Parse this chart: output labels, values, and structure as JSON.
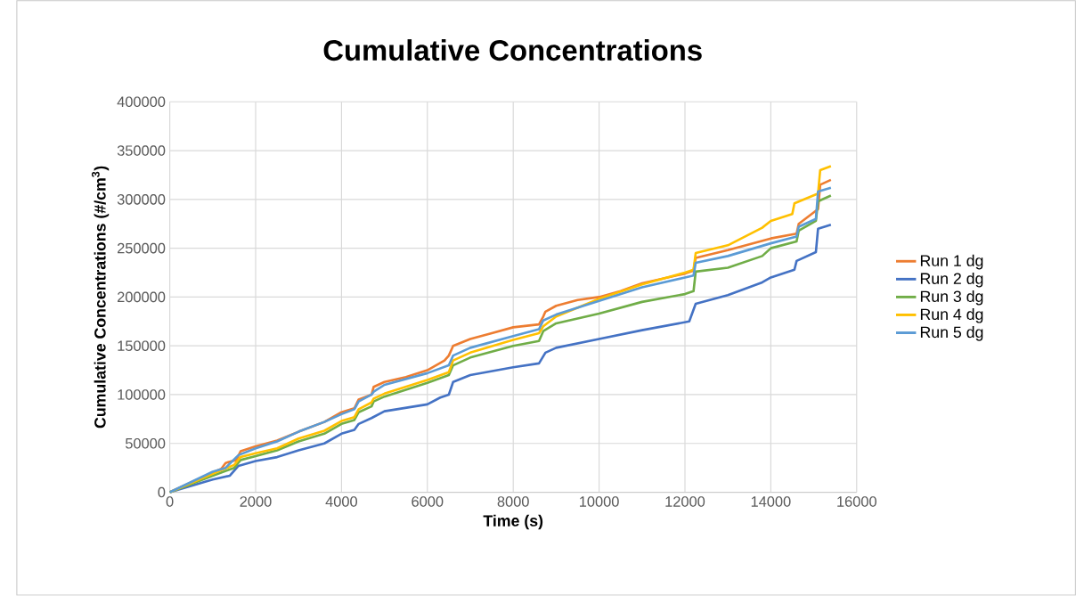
{
  "chart_data": {
    "type": "line",
    "title": "Cumulative Concentrations",
    "xlabel": "Time (s)",
    "ylabel": "Cumulative Concentrations (#/cm$^{3}$)",
    "xlim": [
      0,
      16000
    ],
    "ylim": [
      0,
      400000
    ],
    "xticks": [
      0,
      2000,
      4000,
      6000,
      8000,
      10000,
      12000,
      14000,
      16000
    ],
    "yticks": [
      0,
      50000,
      100000,
      150000,
      200000,
      250000,
      300000,
      350000,
      400000
    ],
    "grid": true,
    "legend": "right",
    "marker": "none",
    "line_style": "solid",
    "series": [
      {
        "name": "Run 1 dg",
        "color": "#ed7d31",
        "x": [
          0,
          1200,
          1300,
          1550,
          1650,
          2000,
          2500,
          3000,
          3600,
          4000,
          4300,
          4400,
          4700,
          4750,
          5000,
          5500,
          6000,
          6400,
          6500,
          6600,
          7000,
          7500,
          8000,
          8600,
          8700,
          8750,
          9000,
          9500,
          10000,
          10500,
          11000,
          12000,
          12200,
          12250,
          13000,
          14000,
          14600,
          14650,
          15100,
          15150,
          15400
        ],
        "values": [
          0,
          24000,
          30000,
          33000,
          42000,
          47000,
          53000,
          62000,
          72000,
          82000,
          86000,
          95000,
          100000,
          108000,
          113000,
          118000,
          125000,
          135000,
          140000,
          150000,
          157000,
          163000,
          169000,
          172000,
          180000,
          185000,
          191000,
          197000,
          200000,
          206000,
          214000,
          224000,
          227000,
          240000,
          248000,
          260000,
          265000,
          275000,
          290000,
          315000,
          320000
        ]
      },
      {
        "name": "Run 2 dg",
        "color": "#4472c4",
        "x": [
          0,
          1000,
          1400,
          1600,
          2000,
          2500,
          3000,
          3600,
          4000,
          4300,
          4400,
          4700,
          5000,
          6000,
          6300,
          6500,
          6600,
          7000,
          8000,
          8600,
          8750,
          9000,
          10000,
          11000,
          12100,
          12250,
          13000,
          13800,
          14000,
          14550,
          14600,
          15050,
          15100,
          15400
        ],
        "values": [
          0,
          13000,
          17000,
          27000,
          32000,
          36000,
          43000,
          50000,
          60000,
          64000,
          70000,
          76000,
          83000,
          90000,
          97000,
          100000,
          113000,
          120000,
          128000,
          132000,
          143000,
          148000,
          157000,
          166000,
          175000,
          193000,
          202000,
          215000,
          220000,
          228000,
          237000,
          246000,
          270000,
          274000
        ]
      },
      {
        "name": "Run 3 dg",
        "color": "#70ad47",
        "x": [
          0,
          1000,
          1500,
          1650,
          2000,
          2500,
          3000,
          3600,
          4000,
          4300,
          4400,
          4700,
          4750,
          5000,
          6000,
          6500,
          6600,
          7000,
          8000,
          8600,
          8700,
          9000,
          10000,
          11000,
          12000,
          12200,
          12250,
          13000,
          13800,
          14000,
          14600,
          14650,
          15050,
          15100,
          15400
        ],
        "values": [
          0,
          17000,
          25000,
          33000,
          37000,
          43000,
          52000,
          60000,
          70000,
          74000,
          82000,
          88000,
          93000,
          98000,
          112000,
          120000,
          130000,
          138000,
          150000,
          155000,
          165000,
          173000,
          183000,
          195000,
          203000,
          206000,
          226000,
          230000,
          242000,
          250000,
          257000,
          268000,
          278000,
          298000,
          304000
        ]
      },
      {
        "name": "Run 4 dg",
        "color": "#ffc000",
        "x": [
          0,
          1000,
          1500,
          1650,
          2000,
          2500,
          3000,
          3600,
          4000,
          4300,
          4400,
          4700,
          4750,
          5000,
          6000,
          6500,
          6600,
          7000,
          8000,
          8600,
          8700,
          9000,
          10000,
          11000,
          12000,
          12200,
          12250,
          13000,
          13800,
          14000,
          14500,
          14550,
          15100,
          15150,
          15400
        ],
        "values": [
          0,
          19000,
          28000,
          36000,
          40000,
          45000,
          55000,
          63000,
          73000,
          77000,
          85000,
          92000,
          96000,
          101000,
          115000,
          123000,
          135000,
          143000,
          156000,
          163000,
          170000,
          180000,
          198000,
          213000,
          225000,
          228000,
          245000,
          253000,
          271000,
          278000,
          285000,
          296000,
          306000,
          330000,
          334000
        ]
      },
      {
        "name": "Run 5 dg",
        "color": "#5b9bd5",
        "x": [
          0,
          1000,
          1300,
          1600,
          2000,
          2500,
          3000,
          3600,
          4000,
          4300,
          4400,
          4700,
          4750,
          5000,
          6000,
          6500,
          6600,
          7000,
          8000,
          8600,
          8700,
          9000,
          10000,
          11000,
          12000,
          12200,
          12250,
          13000,
          14000,
          14600,
          14650,
          15050,
          15100,
          15400
        ],
        "values": [
          0,
          21000,
          25000,
          38000,
          45000,
          52000,
          62000,
          72000,
          80000,
          85000,
          93000,
          100000,
          103000,
          110000,
          122000,
          130000,
          140000,
          148000,
          160000,
          167000,
          176000,
          182000,
          196000,
          210000,
          220000,
          222000,
          235000,
          242000,
          255000,
          262000,
          272000,
          280000,
          308000,
          312000
        ]
      }
    ]
  }
}
